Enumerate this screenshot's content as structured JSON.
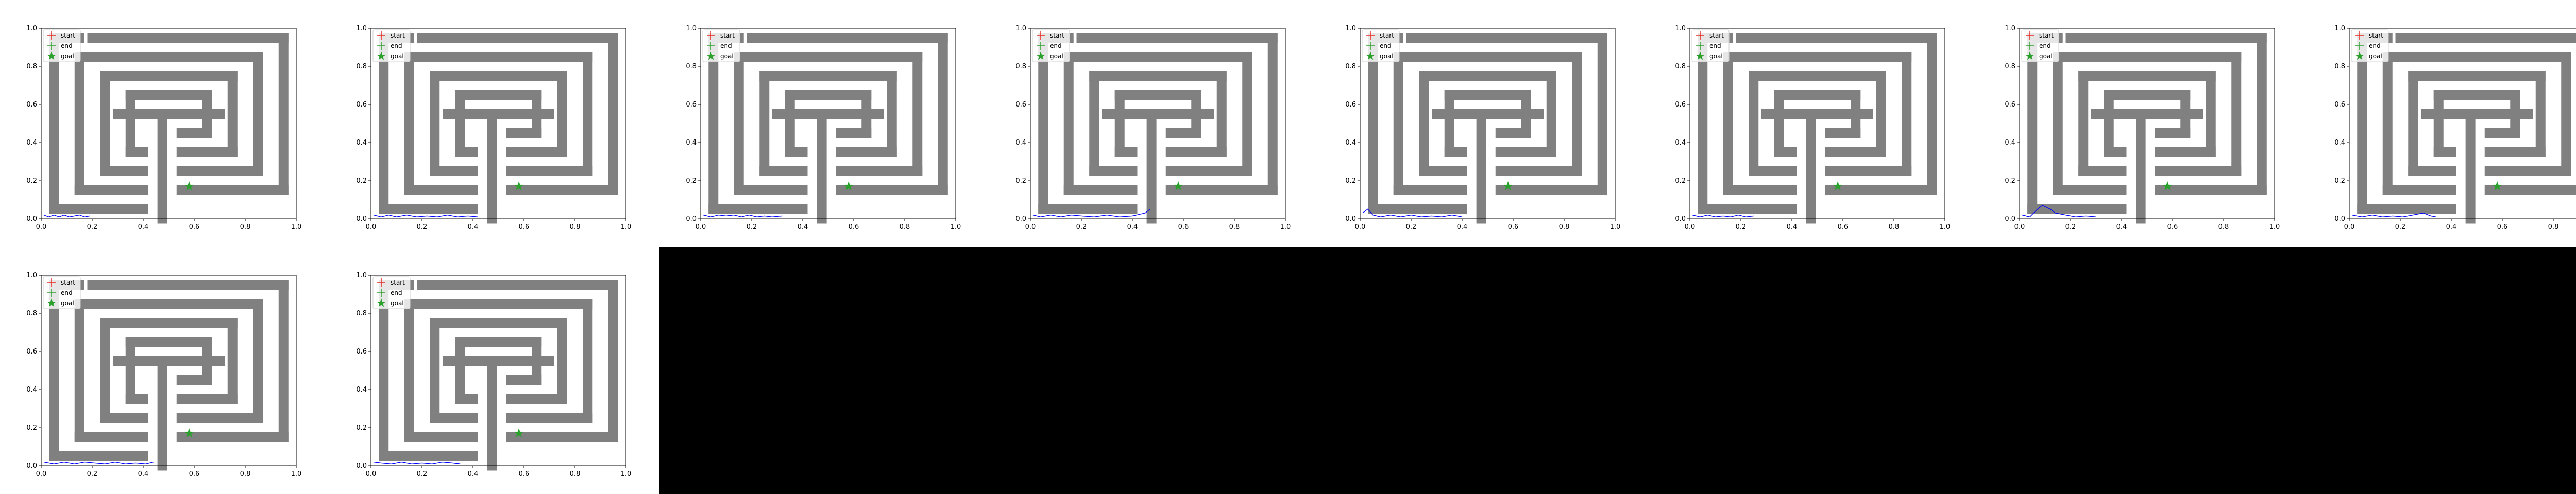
{
  "chart_data": {
    "type": "scatter",
    "panel_count": 10,
    "grid_layout": {
      "rows": 2,
      "columns": 8
    },
    "xlim": [
      0,
      1
    ],
    "ylim": [
      0,
      1
    ],
    "xticks": [
      "0.0",
      "0.2",
      "0.4",
      "0.6",
      "0.8",
      "1.0"
    ],
    "yticks": [
      "0.0",
      "0.2",
      "0.4",
      "0.6",
      "0.8",
      "1.0"
    ],
    "grid": false,
    "legend": {
      "placement": "top-left",
      "entries": [
        {
          "label": "start",
          "marker": "plus",
          "color": "#e8271f"
        },
        {
          "label": "end",
          "marker": "plus",
          "color": "#2ca02c"
        },
        {
          "label": "goal",
          "marker": "star",
          "color": "#2ca02c"
        }
      ]
    },
    "goal": {
      "x": 0.58,
      "y": 0.17
    },
    "maze_color": "#808080",
    "trajectory_color": "#0000ff",
    "maze_walls": [
      [
        0.05,
        0.05,
        0.4,
        0.05
      ],
      [
        0.05,
        0.05,
        0.05,
        0.95
      ],
      [
        0.05,
        0.95,
        0.15,
        0.95
      ],
      [
        0.2,
        0.95,
        0.95,
        0.95
      ],
      [
        0.95,
        0.95,
        0.95,
        0.15
      ],
      [
        0.95,
        0.15,
        0.55,
        0.15
      ],
      [
        0.15,
        0.15,
        0.4,
        0.15
      ],
      [
        0.15,
        0.15,
        0.15,
        0.85
      ],
      [
        0.15,
        0.85,
        0.85,
        0.85
      ],
      [
        0.85,
        0.85,
        0.85,
        0.25
      ],
      [
        0.85,
        0.25,
        0.55,
        0.25
      ],
      [
        0.25,
        0.25,
        0.4,
        0.25
      ],
      [
        0.25,
        0.25,
        0.25,
        0.75
      ],
      [
        0.25,
        0.75,
        0.75,
        0.75
      ],
      [
        0.75,
        0.75,
        0.75,
        0.35
      ],
      [
        0.75,
        0.35,
        0.55,
        0.35
      ],
      [
        0.35,
        0.35,
        0.4,
        0.35
      ],
      [
        0.35,
        0.35,
        0.35,
        0.65
      ],
      [
        0.35,
        0.65,
        0.65,
        0.65
      ],
      [
        0.65,
        0.65,
        0.65,
        0.45
      ],
      [
        0.65,
        0.45,
        0.55,
        0.45
      ],
      [
        0.3,
        0.55,
        0.7,
        0.55
      ],
      [
        0.475,
        0.55,
        0.475,
        0.0
      ]
    ],
    "trajectories": [
      [
        [
          0.01,
          0.02
        ],
        [
          0.03,
          0.01
        ],
        [
          0.05,
          0.02
        ],
        [
          0.07,
          0.01
        ],
        [
          0.09,
          0.02
        ],
        [
          0.11,
          0.01
        ],
        [
          0.13,
          0.015
        ],
        [
          0.15,
          0.02
        ],
        [
          0.17,
          0.01
        ],
        [
          0.19,
          0.015
        ]
      ],
      [
        [
          0.01,
          0.02
        ],
        [
          0.04,
          0.01
        ],
        [
          0.07,
          0.02
        ],
        [
          0.1,
          0.01
        ],
        [
          0.14,
          0.02
        ],
        [
          0.18,
          0.01
        ],
        [
          0.22,
          0.015
        ],
        [
          0.26,
          0.01
        ],
        [
          0.3,
          0.02
        ],
        [
          0.34,
          0.01
        ],
        [
          0.38,
          0.015
        ],
        [
          0.42,
          0.01
        ]
      ],
      [
        [
          0.01,
          0.02
        ],
        [
          0.04,
          0.01
        ],
        [
          0.07,
          0.02
        ],
        [
          0.1,
          0.015
        ],
        [
          0.13,
          0.02
        ],
        [
          0.16,
          0.01
        ],
        [
          0.19,
          0.02
        ],
        [
          0.22,
          0.01
        ],
        [
          0.25,
          0.015
        ],
        [
          0.28,
          0.01
        ],
        [
          0.32,
          0.015
        ]
      ],
      [
        [
          0.01,
          0.02
        ],
        [
          0.04,
          0.01
        ],
        [
          0.08,
          0.02
        ],
        [
          0.12,
          0.01
        ],
        [
          0.16,
          0.02
        ],
        [
          0.2,
          0.015
        ],
        [
          0.25,
          0.01
        ],
        [
          0.3,
          0.02
        ],
        [
          0.35,
          0.01
        ],
        [
          0.4,
          0.015
        ],
        [
          0.45,
          0.03
        ],
        [
          0.47,
          0.05
        ]
      ],
      [
        [
          0.01,
          0.03
        ],
        [
          0.03,
          0.05
        ],
        [
          0.05,
          0.02
        ],
        [
          0.08,
          0.01
        ],
        [
          0.12,
          0.02
        ],
        [
          0.16,
          0.01
        ],
        [
          0.2,
          0.02
        ],
        [
          0.24,
          0.01
        ],
        [
          0.28,
          0.015
        ],
        [
          0.32,
          0.01
        ],
        [
          0.36,
          0.02
        ],
        [
          0.4,
          0.01
        ]
      ],
      [
        [
          0.01,
          0.02
        ],
        [
          0.04,
          0.01
        ],
        [
          0.07,
          0.02
        ],
        [
          0.1,
          0.01
        ],
        [
          0.13,
          0.015
        ],
        [
          0.16,
          0.01
        ],
        [
          0.19,
          0.02
        ],
        [
          0.22,
          0.01
        ],
        [
          0.25,
          0.015
        ]
      ],
      [
        [
          0.01,
          0.02
        ],
        [
          0.04,
          0.01
        ],
        [
          0.07,
          0.05
        ],
        [
          0.09,
          0.07
        ],
        [
          0.12,
          0.05
        ],
        [
          0.14,
          0.03
        ],
        [
          0.18,
          0.02
        ],
        [
          0.22,
          0.01
        ],
        [
          0.26,
          0.015
        ],
        [
          0.3,
          0.01
        ]
      ],
      [
        [
          0.01,
          0.02
        ],
        [
          0.05,
          0.01
        ],
        [
          0.09,
          0.02
        ],
        [
          0.13,
          0.01
        ],
        [
          0.17,
          0.015
        ],
        [
          0.21,
          0.01
        ],
        [
          0.25,
          0.02
        ],
        [
          0.29,
          0.03
        ],
        [
          0.32,
          0.015
        ],
        [
          0.34,
          0.01
        ]
      ],
      [
        [
          0.01,
          0.02
        ],
        [
          0.05,
          0.01
        ],
        [
          0.09,
          0.02
        ],
        [
          0.13,
          0.01
        ],
        [
          0.17,
          0.02
        ],
        [
          0.21,
          0.015
        ],
        [
          0.25,
          0.01
        ],
        [
          0.29,
          0.02
        ],
        [
          0.33,
          0.01
        ],
        [
          0.37,
          0.015
        ],
        [
          0.41,
          0.01
        ],
        [
          0.44,
          0.02
        ]
      ],
      [
        [
          0.01,
          0.02
        ],
        [
          0.04,
          0.015
        ],
        [
          0.08,
          0.01
        ],
        [
          0.12,
          0.02
        ],
        [
          0.16,
          0.01
        ],
        [
          0.2,
          0.015
        ],
        [
          0.24,
          0.01
        ],
        [
          0.28,
          0.02
        ],
        [
          0.32,
          0.015
        ],
        [
          0.35,
          0.01
        ]
      ]
    ]
  }
}
